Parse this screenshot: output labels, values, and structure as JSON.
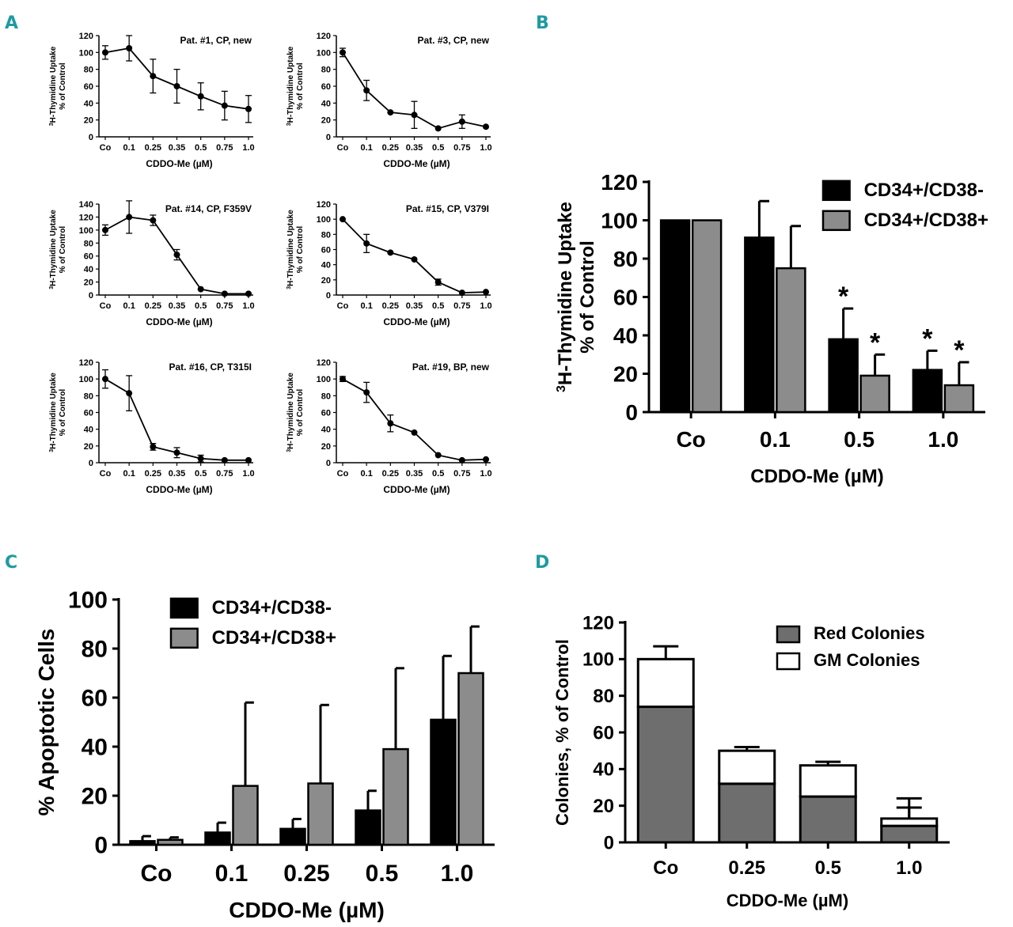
{
  "panel_labels": [
    "A",
    "B",
    "C",
    "D"
  ],
  "chart_data": [
    {
      "panel": "A",
      "type": "line",
      "title": "Pat. #1, CP, new",
      "categories": [
        "Co",
        "0.1",
        "0.25",
        "0.35",
        "0.5",
        "0.75",
        "1.0"
      ],
      "values": [
        100,
        105,
        72,
        60,
        48,
        37,
        33
      ],
      "errors": [
        8,
        15,
        20,
        20,
        16,
        17,
        16
      ],
      "ylim": [
        0,
        120
      ],
      "yticks": [
        0,
        20,
        40,
        60,
        80,
        100,
        120
      ],
      "xlabel": "CDDO-Me (µM)",
      "ylabel_sup": "3",
      "ylabel": "H-Thymidine Uptake",
      "ylabel2": "% of Control"
    },
    {
      "panel": "A",
      "type": "line",
      "title": "Pat. #3, CP, new",
      "categories": [
        "Co",
        "0.1",
        "0.25",
        "0.35",
        "0.5",
        "0.75",
        "1.0"
      ],
      "values": [
        100,
        55,
        29,
        26,
        10,
        18,
        12
      ],
      "errors": [
        5,
        12,
        0,
        16,
        0,
        8,
        0
      ],
      "ylim": [
        0,
        120
      ],
      "yticks": [
        0,
        20,
        40,
        60,
        80,
        100,
        120
      ],
      "xlabel": "CDDO-Me (µM)",
      "ylabel_sup": "3",
      "ylabel": "H-Thymidine Uptake",
      "ylabel2": "% of Control"
    },
    {
      "panel": "A",
      "type": "line",
      "title": "Pat. #14, CP, F359V",
      "categories": [
        "Co",
        "0.1",
        "0.25",
        "0.35",
        "0.5",
        "0.75",
        "1.0"
      ],
      "values": [
        100,
        120,
        115,
        62,
        9,
        2,
        2
      ],
      "errors": [
        8,
        25,
        8,
        8,
        0,
        0,
        0
      ],
      "ylim": [
        0,
        140
      ],
      "yticks": [
        0,
        20,
        40,
        60,
        80,
        100,
        120,
        140
      ],
      "xlabel": "CDDO-Me (µM)",
      "ylabel_sup": "3",
      "ylabel": "H-Thymidine Uptake",
      "ylabel2": "% of Control"
    },
    {
      "panel": "A",
      "type": "line",
      "title": "Pat. #15, CP, V379I",
      "categories": [
        "Co",
        "0.1",
        "0.25",
        "0.35",
        "0.5",
        "0.75",
        "1.0"
      ],
      "values": [
        100,
        68,
        56,
        47,
        17,
        3,
        4
      ],
      "errors": [
        0,
        12,
        0,
        0,
        4,
        0,
        0
      ],
      "ylim": [
        0,
        120
      ],
      "yticks": [
        0,
        20,
        40,
        60,
        80,
        100,
        120
      ],
      "xlabel": "CDDO-Me (µM)",
      "ylabel_sup": "3",
      "ylabel": "H-Thymidine Uptake",
      "ylabel2": "% of Control"
    },
    {
      "panel": "A",
      "type": "line",
      "title": "Pat. #16, CP, T315I",
      "categories": [
        "Co",
        "0.1",
        "0.25",
        "0.35",
        "0.5",
        "0.75",
        "1.0"
      ],
      "values": [
        100,
        83,
        19,
        12,
        5,
        3,
        3
      ],
      "errors": [
        11,
        21,
        4,
        6,
        4,
        0,
        0
      ],
      "ylim": [
        0,
        120
      ],
      "yticks": [
        0,
        20,
        40,
        60,
        80,
        100,
        120
      ],
      "xlabel": "CDDO-Me (µM)",
      "ylabel_sup": "3",
      "ylabel": "H-Thymidine Uptake",
      "ylabel2": "% of Control"
    },
    {
      "panel": "A",
      "type": "line",
      "title": "Pat. #19, BP, new",
      "categories": [
        "Co",
        "0.1",
        "0.25",
        "0.35",
        "0.5",
        "0.75",
        "1.0"
      ],
      "values": [
        100,
        84,
        47,
        36,
        9,
        3,
        4
      ],
      "errors": [
        3,
        12,
        10,
        0,
        0,
        0,
        0
      ],
      "ylim": [
        0,
        120
      ],
      "yticks": [
        0,
        20,
        40,
        60,
        80,
        100,
        120
      ],
      "xlabel": "CDDO-Me (µM)",
      "ylabel_sup": "3",
      "ylabel": "H-Thymidine Uptake",
      "ylabel2": "% of Control"
    },
    {
      "panel": "B",
      "type": "bar",
      "categories": [
        "Co",
        "0.1",
        "0.5",
        "1.0"
      ],
      "series": [
        {
          "name": "CD34+/CD38-",
          "color": "#000000",
          "values": [
            100,
            91,
            38,
            22
          ],
          "errors": [
            0,
            19,
            16,
            10
          ],
          "stars": [
            false,
            false,
            true,
            true
          ]
        },
        {
          "name": "CD34+/CD38+",
          "color": "#8c8c8c",
          "values": [
            100,
            75,
            19,
            14
          ],
          "errors": [
            0,
            22,
            11,
            12
          ],
          "stars": [
            false,
            false,
            true,
            true
          ]
        }
      ],
      "star_label": "*",
      "ylim": [
        0,
        120
      ],
      "yticks": [
        0,
        20,
        40,
        60,
        80,
        100,
        120
      ],
      "xlabel": "CDDO-Me (µM)",
      "ylabel_sup": "3",
      "ylabel": "H-Thymidine Uptake",
      "ylabel2": "% of Control",
      "legend": "top-right"
    },
    {
      "panel": "C",
      "type": "bar",
      "categories": [
        "Co",
        "0.1",
        "0.25",
        "0.5",
        "1.0"
      ],
      "series": [
        {
          "name": "CD34+/CD38-",
          "color": "#000000",
          "values": [
            1.5,
            5,
            6.5,
            14,
            51
          ],
          "errors": [
            2,
            4,
            4,
            8,
            26
          ]
        },
        {
          "name": "CD34+/CD38+",
          "color": "#8c8c8c",
          "values": [
            2,
            24,
            25,
            39,
            70
          ],
          "errors": [
            1,
            34,
            32,
            33,
            19
          ]
        }
      ],
      "ylim": [
        0,
        100
      ],
      "yticks": [
        0,
        20,
        40,
        60,
        80,
        100
      ],
      "xlabel": "CDDO-Me (µM)",
      "ylabel": "% Apoptotic Cells",
      "legend": "top-left"
    },
    {
      "panel": "D",
      "type": "bar",
      "stacked": true,
      "categories": [
        "Co",
        "0.25",
        "0.5",
        "1.0"
      ],
      "series": [
        {
          "name": "Red Colonies",
          "color": "#6e6e6e",
          "values": [
            74,
            32,
            25,
            9
          ],
          "errors": [
            7,
            7,
            11,
            10
          ]
        },
        {
          "name": "GM Colonies",
          "color": "#ffffff",
          "values": [
            26,
            18,
            17,
            4
          ],
          "errors": [
            7,
            2,
            2,
            11
          ]
        }
      ],
      "ylim": [
        0,
        120
      ],
      "yticks": [
        0,
        20,
        40,
        60,
        80,
        100,
        120
      ],
      "xlabel": "CDDO-Me (µM)",
      "ylabel": "Colonies, % of Control",
      "legend": "top-right"
    }
  ]
}
